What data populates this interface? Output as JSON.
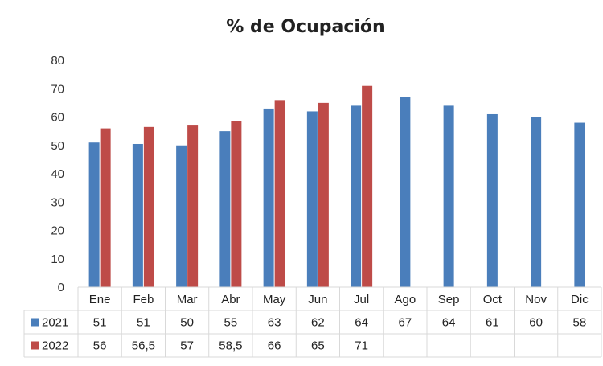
{
  "chart_data": {
    "type": "bar",
    "title": "% de Ocupación",
    "categories": [
      "Ene",
      "Feb",
      "Mar",
      "Abr",
      "May",
      "Jun",
      "Jul",
      "Ago",
      "Sep",
      "Oct",
      "Nov",
      "Dic"
    ],
    "series": [
      {
        "name": "2021",
        "color": "#4a7ebb",
        "values": [
          51,
          50.5,
          50,
          55,
          63,
          62,
          64,
          67,
          64,
          61,
          60,
          58
        ],
        "labels": [
          "51",
          "51",
          "50",
          "55",
          "63",
          "62",
          "64",
          "67",
          "64",
          "61",
          "60",
          "58"
        ]
      },
      {
        "name": "2022",
        "color": "#be4b48",
        "values": [
          56,
          56.5,
          57,
          58.5,
          66,
          65,
          71,
          null,
          null,
          null,
          null,
          null
        ],
        "labels": [
          "56",
          "56,5",
          "57",
          "58,5",
          "66",
          "65",
          "71",
          "",
          "",
          "",
          "",
          ""
        ]
      }
    ],
    "ylim": [
      0,
      80
    ],
    "yticks": [
      0,
      10,
      20,
      30,
      40,
      50,
      60,
      70,
      80
    ],
    "grid": false,
    "legend": "data-table"
  }
}
